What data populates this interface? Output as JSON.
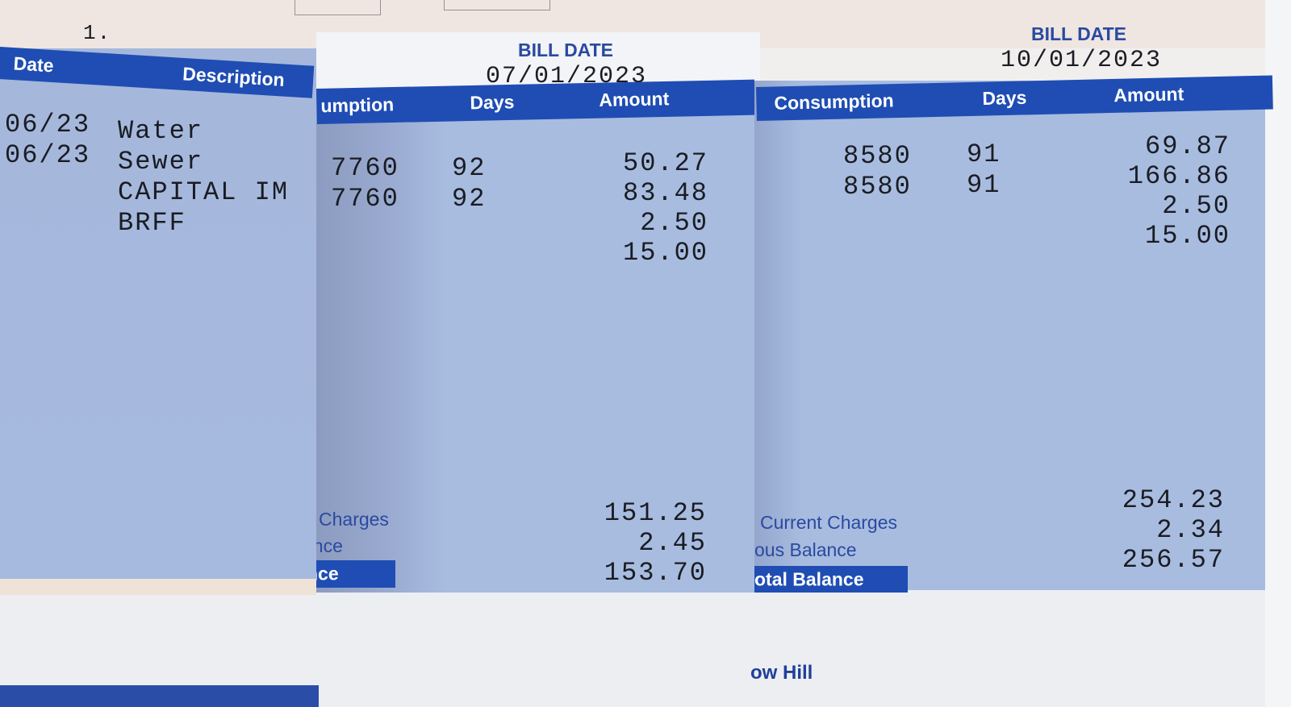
{
  "left_stub": {
    "top_mark": "1.",
    "headers": {
      "date": "Date",
      "description": "Description"
    },
    "rows": [
      {
        "date": "06/23",
        "description": "Water"
      },
      {
        "date": "06/23",
        "description": "Sewer"
      },
      {
        "date": "",
        "description": "CAPITAL IM"
      },
      {
        "date": "",
        "description": "BRFF"
      }
    ]
  },
  "bill_july": {
    "bill_date_label": "BILL DATE",
    "bill_date": "07/01/2023",
    "headers": {
      "consumption": "umption",
      "days": "Days",
      "amount": "Amount"
    },
    "rows": [
      {
        "consumption": "7760",
        "days": "92",
        "amount": "50.27"
      },
      {
        "consumption": "7760",
        "days": "92",
        "amount": "83.48"
      },
      {
        "consumption": "",
        "days": "",
        "amount": "2.50"
      },
      {
        "consumption": "",
        "days": "",
        "amount": "15.00"
      }
    ],
    "summary": [
      {
        "label": "Charges",
        "amount": "151.25"
      },
      {
        "label": "ance",
        "amount": "2.45"
      },
      {
        "label": "nce",
        "amount": "153.70"
      }
    ]
  },
  "bill_october": {
    "bill_date_label": "BILL DATE",
    "bill_date": "10/01/2023",
    "headers": {
      "consumption": "Consumption",
      "days": "Days",
      "amount": "Amount"
    },
    "rows": [
      {
        "consumption": "8580",
        "days": "91",
        "amount": "69.87"
      },
      {
        "consumption": "8580",
        "days": "91",
        "amount": "166.86"
      },
      {
        "consumption": "",
        "days": "",
        "amount": "2.50"
      },
      {
        "consumption": "",
        "days": "",
        "amount": "15.00"
      }
    ],
    "summary": [
      {
        "label": "Current Charges",
        "amount": "254.23"
      },
      {
        "label": "ous Balance",
        "amount": "2.34"
      },
      {
        "label": "otal Balance",
        "amount": "256.57"
      }
    ],
    "footer_text": "ow Hill"
  },
  "colors": {
    "band": "#1f4db3",
    "sheet": "#a8bce0",
    "paper": "#eceef2"
  }
}
